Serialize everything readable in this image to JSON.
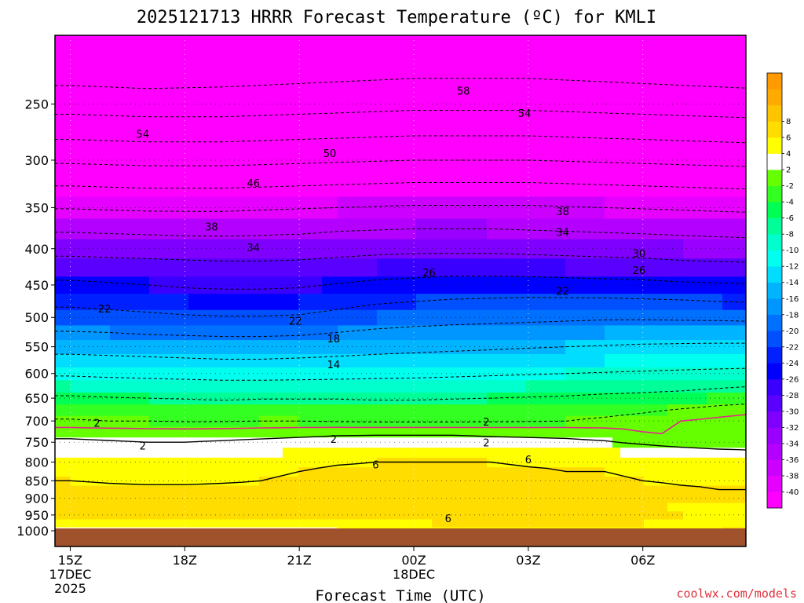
{
  "chart_data": {
    "type": "heatmap",
    "title": "2025121713 HRRR Forecast Temperature (ºC) for KMLI",
    "xlabel": "Forecast Time (UTC)",
    "ylabel": "",
    "credit": "coolwx.com/models",
    "y_scale": "log-pressure",
    "y_axis_ticks": [
      250,
      300,
      350,
      400,
      450,
      500,
      550,
      600,
      650,
      700,
      750,
      800,
      850,
      900,
      950,
      1000
    ],
    "ylim_hpa": [
      1000,
      200
    ],
    "x_axis_ticks": [
      {
        "value": "15Z",
        "line2": "17DEC",
        "line3": "2025"
      },
      {
        "value": "18Z",
        "line2": "",
        "line3": ""
      },
      {
        "value": "21Z",
        "line2": "",
        "line3": ""
      },
      {
        "value": "00Z",
        "line2": "18DEC",
        "line3": ""
      },
      {
        "value": "03Z",
        "line2": "",
        "line3": ""
      },
      {
        "value": "06Z",
        "line2": "",
        "line3": ""
      }
    ],
    "forecast_hours": [
      0,
      1,
      2,
      3,
      4,
      5,
      6,
      7,
      8,
      9,
      10,
      11,
      12,
      13,
      14,
      15,
      16,
      17,
      18
    ],
    "pressure_levels": [
      1000,
      975,
      950,
      925,
      900,
      875,
      850,
      825,
      800,
      775,
      750,
      725,
      700,
      675,
      650,
      625,
      600,
      575,
      550,
      525,
      500,
      475,
      450,
      425,
      400,
      375,
      350,
      325,
      300,
      275,
      250,
      225,
      200
    ],
    "temperature_c": [
      [
        2.5,
        2.0,
        2.5,
        3.0,
        3.2,
        3.5,
        3.8,
        4.0,
        4.2,
        4.5,
        4.8,
        5.0,
        5.2,
        5.5,
        5.5,
        5.5,
        5.8,
        6.0,
        6.0
      ],
      [
        5.5,
        5.0,
        4.5,
        4.5,
        4.8,
        5.0,
        5.0,
        5.2,
        5.5,
        5.8,
        6.2,
        6.5,
        6.8,
        6.8,
        6.5,
        6.0,
        5.0,
        4.5,
        4.0
      ],
      [
        6.2,
        6.0,
        6.0,
        6.2,
        6.5,
        6.5,
        6.5,
        6.6,
        6.8,
        7.0,
        7.0,
        7.2,
        7.0,
        7.0,
        6.8,
        6.5,
        6.0,
        5.5,
        5.0
      ],
      [
        7.0,
        7.0,
        6.8,
        6.8,
        7.0,
        7.0,
        7.0,
        7.0,
        7.0,
        7.2,
        7.4,
        7.5,
        7.4,
        7.2,
        7.0,
        6.5,
        5.8,
        5.2,
        5.0
      ],
      [
        7.2,
        7.2,
        7.0,
        7.0,
        6.8,
        6.8,
        6.8,
        7.0,
        7.0,
        7.2,
        7.2,
        7.2,
        7.4,
        7.2,
        7.0,
        6.5,
        6.0,
        6.0,
        6.0
      ],
      [
        6.8,
        6.5,
        6.5,
        6.5,
        6.5,
        6.5,
        6.8,
        6.8,
        7.0,
        7.0,
        7.0,
        7.0,
        7.0,
        7.0,
        6.8,
        6.5,
        6.2,
        6.0,
        6.0
      ],
      [
        6.0,
        5.8,
        5.6,
        5.6,
        5.8,
        6.0,
        6.5,
        6.8,
        6.8,
        6.8,
        6.8,
        6.6,
        6.6,
        6.4,
        6.2,
        6.0,
        5.8,
        5.8,
        5.8
      ],
      [
        5.5,
        5.2,
        5.0,
        5.0,
        5.2,
        5.5,
        6.0,
        6.4,
        6.5,
        6.5,
        6.5,
        6.4,
        6.2,
        6.0,
        6.0,
        5.8,
        5.6,
        5.4,
        5.2
      ],
      [
        4.8,
        4.5,
        4.2,
        4.2,
        4.5,
        5.0,
        5.5,
        5.8,
        6.0,
        6.0,
        6.0,
        6.0,
        5.8,
        5.8,
        5.8,
        5.5,
        5.2,
        5.0,
        4.8
      ],
      [
        3.8,
        3.5,
        3.2,
        3.2,
        3.5,
        3.8,
        4.2,
        4.5,
        4.6,
        4.8,
        4.8,
        4.6,
        4.5,
        4.4,
        4.2,
        3.8,
        3.2,
        2.8,
        2.5
      ],
      [
        2.4,
        2.2,
        2.0,
        2.0,
        2.2,
        2.4,
        2.6,
        2.8,
        2.8,
        2.8,
        2.8,
        2.6,
        2.5,
        2.4,
        2.2,
        1.5,
        0.8,
        0.3,
        0.0
      ],
      [
        1.2,
        1.0,
        0.8,
        0.8,
        0.9,
        1.1,
        1.3,
        1.5,
        1.6,
        1.6,
        1.6,
        1.5,
        1.4,
        1.3,
        0.8,
        0.0,
        -0.5,
        -1.0,
        -1.5
      ],
      [
        -1.8,
        -2.0,
        -2.0,
        -2.2,
        -2.2,
        -2.0,
        -2.0,
        -2.2,
        -2.4,
        -2.4,
        -2.4,
        -2.3,
        -2.2,
        -2.0,
        -1.5,
        -0.8,
        0.0,
        0.5,
        1.0
      ],
      [
        -3.0,
        -3.0,
        -3.4,
        -3.6,
        -3.8,
        -3.6,
        -3.6,
        -3.8,
        -4.0,
        -4.0,
        -3.8,
        -3.6,
        -3.4,
        -3.2,
        -3.0,
        -2.5,
        -1.8,
        -1.0,
        -0.5
      ],
      [
        -5.5,
        -5.8,
        -6.0,
        -6.2,
        -6.5,
        -6.2,
        -6.2,
        -6.2,
        -6.4,
        -6.4,
        -6.2,
        -6.0,
        -5.8,
        -5.6,
        -5.2,
        -5.0,
        -4.5,
        -3.8,
        -3.2
      ],
      [
        -8.0,
        -8.2,
        -8.4,
        -8.6,
        -8.8,
        -8.8,
        -8.8,
        -8.8,
        -8.8,
        -8.6,
        -8.4,
        -8.2,
        -8.0,
        -7.8,
        -7.5,
        -7.2,
        -7.0,
        -6.5,
        -6.0
      ],
      [
        -10.5,
        -10.8,
        -11.0,
        -11.2,
        -11.4,
        -11.4,
        -11.2,
        -11.0,
        -10.8,
        -10.8,
        -10.6,
        -10.4,
        -10.2,
        -10.0,
        -9.8,
        -9.6,
        -9.4,
        -9.2,
        -9.0
      ],
      [
        -13.0,
        -13.2,
        -13.4,
        -13.6,
        -13.8,
        -13.8,
        -13.6,
        -13.4,
        -13.2,
        -13.0,
        -12.8,
        -12.6,
        -12.4,
        -12.2,
        -12.0,
        -11.8,
        -11.6,
        -11.5,
        -11.4
      ],
      [
        -15.2,
        -15.4,
        -15.6,
        -15.8,
        -16.0,
        -16.0,
        -15.8,
        -15.4,
        -15.0,
        -14.8,
        -14.6,
        -14.4,
        -14.2,
        -14.0,
        -13.8,
        -13.6,
        -13.5,
        -13.4,
        -13.4
      ],
      [
        -17.8,
        -18.0,
        -18.4,
        -18.6,
        -18.8,
        -18.8,
        -18.6,
        -18.0,
        -17.4,
        -17.0,
        -16.8,
        -16.6,
        -16.4,
        -16.2,
        -16.0,
        -15.8,
        -15.8,
        -15.8,
        -15.8
      ],
      [
        -20.5,
        -20.8,
        -21.2,
        -21.6,
        -21.8,
        -21.8,
        -21.6,
        -20.8,
        -20.0,
        -19.6,
        -19.2,
        -19.0,
        -18.8,
        -18.6,
        -18.4,
        -18.4,
        -18.5,
        -18.6,
        -18.8
      ],
      [
        -22.8,
        -23.2,
        -23.6,
        -24.0,
        -24.2,
        -24.2,
        -24.0,
        -23.2,
        -22.4,
        -22.0,
        -21.6,
        -21.4,
        -21.2,
        -21.2,
        -21.2,
        -21.4,
        -21.6,
        -22.0,
        -22.2
      ],
      [
        -25.2,
        -25.6,
        -26.0,
        -26.4,
        -26.6,
        -26.6,
        -26.4,
        -25.8,
        -25.2,
        -24.8,
        -24.4,
        -24.4,
        -24.4,
        -24.6,
        -24.8,
        -25.0,
        -25.4,
        -25.6,
        -25.8
      ],
      [
        -28.2,
        -28.4,
        -28.6,
        -28.8,
        -29.0,
        -29.0,
        -28.8,
        -28.4,
        -28.0,
        -27.8,
        -27.6,
        -27.6,
        -27.8,
        -28.0,
        -28.2,
        -28.4,
        -28.8,
        -29.0,
        -29.2
      ],
      [
        -31.2,
        -31.4,
        -31.6,
        -31.8,
        -32.0,
        -32.0,
        -31.8,
        -31.4,
        -31.0,
        -30.8,
        -30.8,
        -30.8,
        -31.0,
        -31.2,
        -31.4,
        -31.6,
        -32.0,
        -32.2,
        -32.4
      ],
      [
        -34.6,
        -34.8,
        -35.0,
        -35.2,
        -35.2,
        -35.0,
        -34.8,
        -34.4,
        -34.2,
        -34.0,
        -34.0,
        -34.0,
        -34.2,
        -34.4,
        -34.6,
        -34.8,
        -35.0,
        -35.2,
        -35.4
      ],
      [
        -38.2,
        -38.4,
        -38.6,
        -38.6,
        -38.6,
        -38.4,
        -38.2,
        -38.0,
        -37.8,
        -37.6,
        -37.6,
        -37.6,
        -37.6,
        -37.8,
        -38.0,
        -38.2,
        -38.4,
        -38.6,
        -38.8
      ],
      [
        -42.2,
        -42.4,
        -42.6,
        -42.6,
        -42.6,
        -42.4,
        -42.2,
        -42.0,
        -41.8,
        -41.6,
        -41.6,
        -41.6,
        -41.6,
        -41.8,
        -42.0,
        -42.2,
        -42.4,
        -42.6,
        -42.8
      ],
      [
        -46.6,
        -46.8,
        -47.0,
        -47.0,
        -47.0,
        -46.8,
        -46.6,
        -46.4,
        -46.2,
        -46.0,
        -46.0,
        -46.0,
        -46.0,
        -46.2,
        -46.4,
        -46.6,
        -46.8,
        -47.0,
        -47.2
      ],
      [
        -51.0,
        -51.2,
        -51.4,
        -51.4,
        -51.4,
        -51.2,
        -51.0,
        -50.8,
        -50.6,
        -50.4,
        -50.4,
        -50.4,
        -50.4,
        -50.6,
        -50.8,
        -51.0,
        -51.2,
        -51.4,
        -51.6
      ],
      [
        -55.6,
        -55.8,
        -56.0,
        -56.0,
        -56.0,
        -55.8,
        -55.6,
        -55.4,
        -55.2,
        -55.0,
        -55.0,
        -55.0,
        -55.0,
        -55.2,
        -55.4,
        -55.6,
        -55.8,
        -56.0,
        -56.2
      ],
      [
        -59.8,
        -60.0,
        -60.2,
        -60.0,
        -59.8,
        -59.6,
        -59.4,
        -59.2,
        -59.0,
        -58.8,
        -58.8,
        -58.8,
        -58.8,
        -59.0,
        -59.2,
        -59.4,
        -59.6,
        -59.8,
        -60.0
      ],
      [
        -61.5,
        -61.8,
        -62.2,
        -62.5,
        -62.2,
        -61.8,
        -61.5,
        -61.2,
        -61.0,
        -61.2,
        -61.5,
        -62.0,
        -62.4,
        -62.0,
        -61.5,
        -61.2,
        -61.5,
        -62.0,
        -62.2
      ]
    ],
    "freezing_line": {
      "value": 0,
      "color": "#e0288c"
    },
    "colorbar": {
      "colors": [
        "#ff00ff",
        "#e600ff",
        "#cc00ff",
        "#b300ff",
        "#9900ff",
        "#7f00ff",
        "#5a00ff",
        "#3a00ff",
        "#0000ff",
        "#0020ff",
        "#0050ff",
        "#0070ff",
        "#0096ff",
        "#00b4ff",
        "#00ddff",
        "#00ffee",
        "#00ffcc",
        "#00ff99",
        "#00ff55",
        "#33ff22",
        "#66ff00",
        "#ffffff",
        "#ffff00",
        "#ffdd00",
        "#ffc400",
        "#ffaa00",
        "#ff9a00"
      ],
      "bounds": [
        -40,
        -38,
        -36,
        -34,
        -32,
        -30,
        -28,
        -26,
        -24,
        -22,
        -20,
        -18,
        -16,
        -14,
        -12,
        -10,
        -8,
        -6,
        -4,
        -2,
        2,
        4,
        6,
        8
      ],
      "labels": [
        "-40",
        "-38",
        "-36",
        "-34",
        "-32",
        "-30",
        "-28",
        "-26",
        "-24",
        "-22",
        "-20",
        "-18",
        "-16",
        "-14",
        "-12",
        "-10",
        "-8",
        "-6",
        "-4",
        "-2",
        "2",
        "4",
        "6",
        "8"
      ]
    },
    "contour_labels": [
      {
        "text": "58",
        "t": 10.3,
        "p": 240
      },
      {
        "text": "54",
        "t": 1.9,
        "p": 276
      },
      {
        "text": "54",
        "t": 11.9,
        "p": 258
      },
      {
        "text": "50",
        "t": 6.8,
        "p": 294
      },
      {
        "text": "46",
        "t": 4.8,
        "p": 324
      },
      {
        "text": "38",
        "t": 3.7,
        "p": 373
      },
      {
        "text": "38",
        "t": 12.9,
        "p": 355
      },
      {
        "text": "34",
        "t": 4.8,
        "p": 399
      },
      {
        "text": "34",
        "t": 12.9,
        "p": 380
      },
      {
        "text": "30",
        "t": 14.9,
        "p": 407
      },
      {
        "text": "26",
        "t": 9.4,
        "p": 433
      },
      {
        "text": "26",
        "t": 14.9,
        "p": 430
      },
      {
        "text": "22",
        "t": 0.9,
        "p": 487
      },
      {
        "text": "22",
        "t": 5.9,
        "p": 507
      },
      {
        "text": "22",
        "t": 12.9,
        "p": 460
      },
      {
        "text": "18",
        "t": 6.9,
        "p": 537
      },
      {
        "text": "14",
        "t": 6.9,
        "p": 584
      },
      {
        "text": "2",
        "t": 0.7,
        "p": 706
      },
      {
        "text": "2",
        "t": 10.9,
        "p": 703
      },
      {
        "text": "2",
        "t": 6.9,
        "p": 744
      },
      {
        "text": "2",
        "t": 10.9,
        "p": 752
      },
      {
        "text": "2",
        "t": 1.9,
        "p": 760
      },
      {
        "text": "6",
        "t": 8.0,
        "p": 808
      },
      {
        "text": "6",
        "t": 12.0,
        "p": 795
      },
      {
        "text": "6",
        "t": 9.9,
        "p": 962
      }
    ]
  }
}
